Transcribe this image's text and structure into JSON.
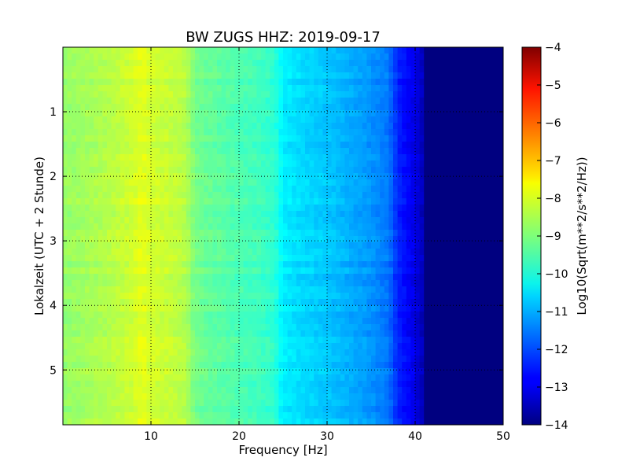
{
  "chart_data": {
    "type": "heatmap",
    "title": "BW ZUGS HHZ: 2019-09-17",
    "xlabel": "Frequency [Hz]",
    "ylabel": "Lokalzeit (UTC + 2 Stunde)",
    "xlim": [
      0,
      50
    ],
    "ylim": [
      5.85,
      0
    ],
    "y_inverted": true,
    "x_ticks": [
      10,
      20,
      30,
      40,
      50
    ],
    "y_ticks": [
      1,
      2,
      3,
      4,
      5
    ],
    "grid": true,
    "colormap": "jet",
    "colorbar": {
      "label": "Log10(Sqrt(m**2/s**2/Hz))",
      "range": [
        -14,
        -4
      ],
      "ticks": [
        -4,
        -5,
        -6,
        -7,
        -8,
        -9,
        -10,
        -11,
        -12,
        -13,
        -14
      ]
    },
    "spectrum_profile": {
      "frequency_hz": [
        0,
        5,
        8,
        9,
        10,
        12,
        14,
        15,
        17,
        20,
        22,
        24,
        25,
        27,
        30,
        33,
        35,
        37,
        38,
        40,
        41,
        43,
        45,
        50
      ],
      "log10_amplitude": [
        -8.8,
        -8.5,
        -8.2,
        -8.0,
        -8.2,
        -8.3,
        -8.5,
        -9.1,
        -9.3,
        -9.5,
        -9.6,
        -9.8,
        -10.4,
        -10.6,
        -10.8,
        -11.1,
        -11.3,
        -11.6,
        -12.4,
        -13.0,
        -13.5,
        -14.0,
        -14.0,
        -14.0
      ]
    }
  }
}
